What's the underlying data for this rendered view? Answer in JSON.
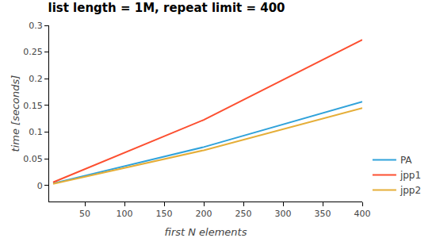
{
  "chart_data": {
    "type": "line",
    "title": "list length = 1M, repeat limit = 400",
    "x_label": "first N elements",
    "y_label": "time [seconds]",
    "x": [
      10,
      200,
      400
    ],
    "series": [
      {
        "name": "PA",
        "color": "#30a2da",
        "values": [
          0.004,
          0.072,
          0.157
        ]
      },
      {
        "name": "jpp1",
        "color": "#fc4f30",
        "values": [
          0.006,
          0.123,
          0.273
        ]
      },
      {
        "name": "jpp2",
        "color": "#e5ae38",
        "values": [
          0.003,
          0.066,
          0.145
        ]
      }
    ],
    "xlim": [
      5,
      400
    ],
    "xticks": [
      50,
      100,
      150,
      200,
      250,
      300,
      350,
      400
    ],
    "ylim": [
      -0.03,
      0.3
    ],
    "yticks": [
      0,
      0.05,
      0.1,
      0.15,
      0.2,
      0.25,
      0.3
    ],
    "grid": false,
    "legend": "lower right"
  }
}
